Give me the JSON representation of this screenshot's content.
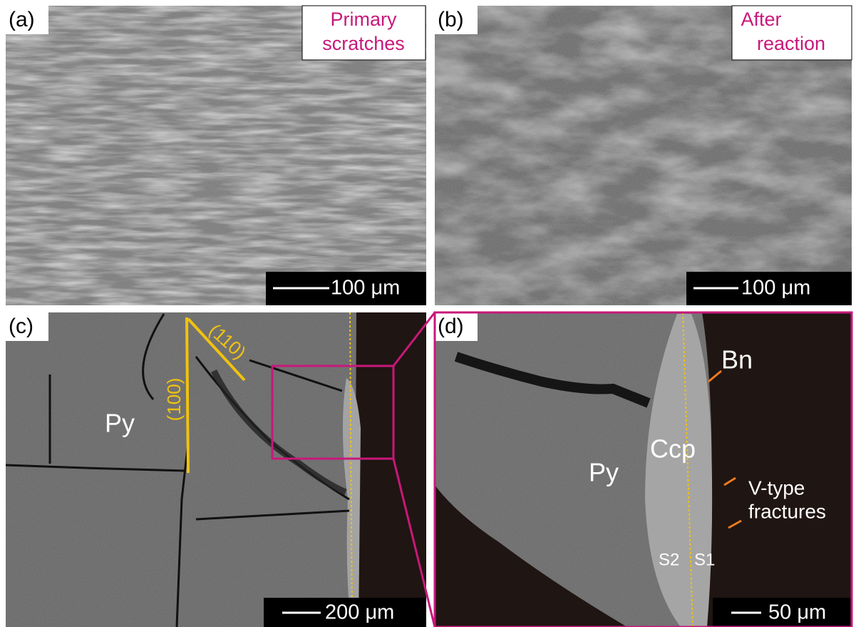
{
  "panels": [
    {
      "label": "(a)",
      "caption": [
        "Primary",
        "scratches"
      ],
      "scale_bar": "100 μm"
    },
    {
      "label": "(b)",
      "caption": [
        "After",
        "reaction"
      ],
      "scale_bar": "100 μm"
    },
    {
      "label": "(c)",
      "scale_bar": "200 μm",
      "annotations": [
        "(100)",
        "(110)",
        "Py"
      ]
    },
    {
      "label": "(d)",
      "scale_bar": "50 μm",
      "annotations": [
        "Bn",
        "Ccp",
        "Py",
        "V-type",
        "fractures",
        "S2",
        "S1"
      ]
    }
  ]
}
